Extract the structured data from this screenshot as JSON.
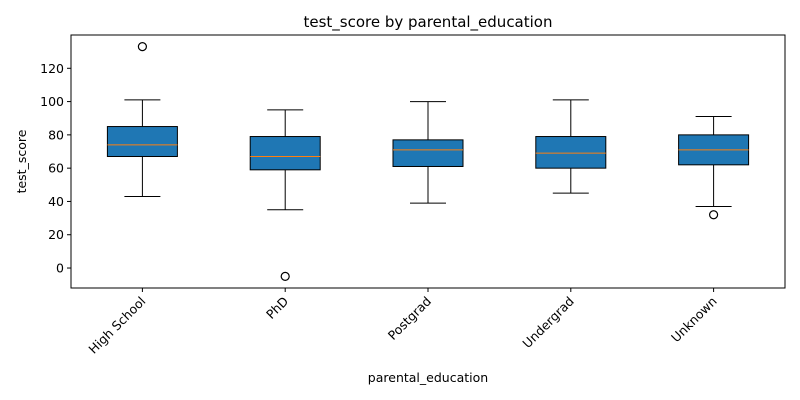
{
  "chart_data": {
    "type": "box",
    "title": "test_score by parental_education",
    "xlabel": "parental_education",
    "ylabel": "test_score",
    "ylim": [
      -12,
      140
    ],
    "yticks": [
      0,
      20,
      40,
      60,
      80,
      100,
      120
    ],
    "grid": false,
    "colors": {
      "box_fill": "#1f77b4",
      "median": "#ff7f0e",
      "edge": "#000000"
    },
    "categories": [
      "High School",
      "PhD",
      "Postgrad",
      "Undergrad",
      "Unknown"
    ],
    "boxes": [
      {
        "category": "High School",
        "whisker_low": 43,
        "q1": 67,
        "median": 74,
        "q3": 85,
        "whisker_high": 101,
        "outliers": [
          133
        ]
      },
      {
        "category": "PhD",
        "whisker_low": 35,
        "q1": 59,
        "median": 67,
        "q3": 79,
        "whisker_high": 95,
        "outliers": [
          -5
        ]
      },
      {
        "category": "Postgrad",
        "whisker_low": 39,
        "q1": 61,
        "median": 71,
        "q3": 77,
        "whisker_high": 100,
        "outliers": []
      },
      {
        "category": "Undergrad",
        "whisker_low": 45,
        "q1": 60,
        "median": 69,
        "q3": 79,
        "whisker_high": 101,
        "outliers": []
      },
      {
        "category": "Unknown",
        "whisker_low": 37,
        "q1": 62,
        "median": 71,
        "q3": 80,
        "whisker_high": 91,
        "outliers": [
          32
        ]
      }
    ]
  }
}
